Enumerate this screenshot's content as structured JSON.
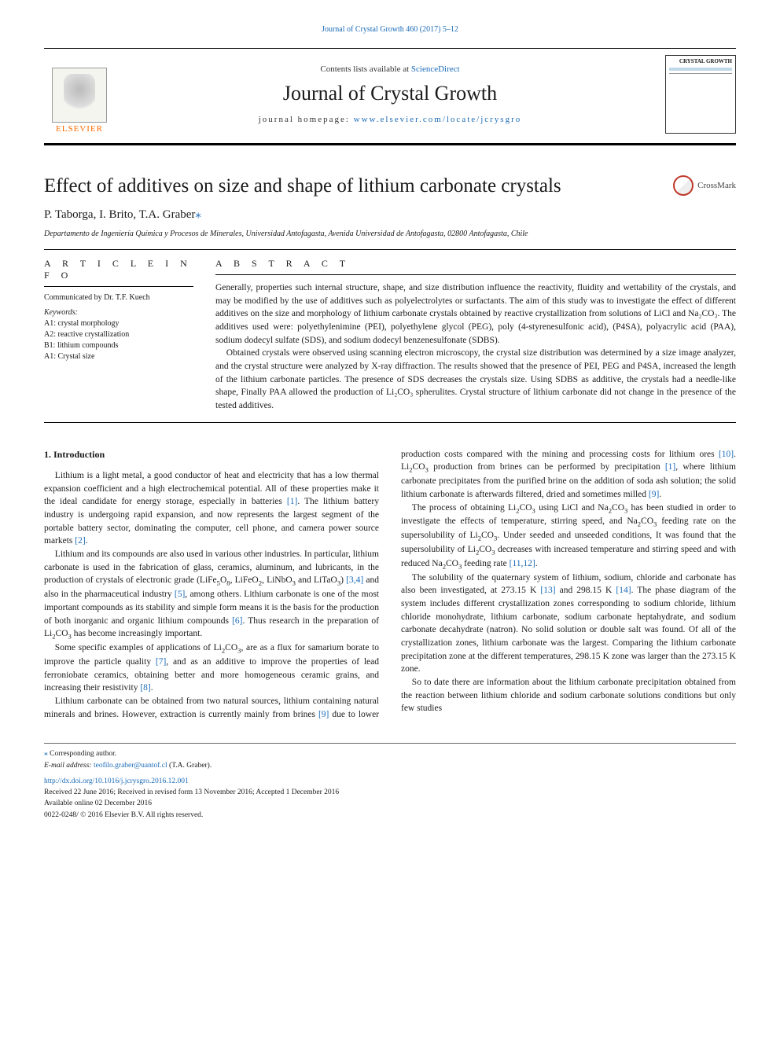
{
  "top_link": "Journal of Crystal Growth 460 (2017) 5–12",
  "header": {
    "contents_prefix": "Contents lists available at ",
    "contents_link": "ScienceDirect",
    "journal_name": "Journal of Crystal Growth",
    "homepage_prefix": "journal homepage: ",
    "homepage_url": "www.elsevier.com/locate/jcrysgro",
    "publisher": "ELSEVIER",
    "cover_title": "CRYSTAL GROWTH"
  },
  "article": {
    "title": "Effect of additives on size and shape of lithium carbonate crystals",
    "crossmark": "CrossMark",
    "authors": "P. Taborga, I. Brito, T.A. Graber",
    "affiliation": "Departamento de Ingeniería Química y Procesos de Minerales, Universidad Antofagasta, Avenida Universidad de Antofagasta, 02800 Antofagasta, Chile"
  },
  "info": {
    "section_label": "A R T I C L E  I N F O",
    "communicated": "Communicated by Dr. T.F. Kuech",
    "keywords_label": "Keywords:",
    "keywords": [
      "A1: crystal morphology",
      "A2: reactive crystallization",
      "B1: lithium compounds",
      "A1: Crystal size"
    ]
  },
  "abstract": {
    "section_label": "A B S T R A C T",
    "paragraphs": [
      "Generally, properties such internal structure, shape, and size distribution influence the reactivity, fluidity and wettability of the crystals, and may be modified by the use of additives such as polyelectrolytes or surfactants. The aim of this study was to investigate the effect of different additives on the size and morphology of lithium carbonate crystals obtained by reactive crystallization from solutions of LiCl and Na₂CO₃. The additives used were: polyethylenimine (PEI), polyethylene glycol (PEG), poly (4-styrenesulfonic acid), (P4SA), polyacrylic acid (PAA), sodium dodecyl sulfate (SDS), and sodium dodecyl benzenesulfonate (SDBS).",
      "Obtained crystals were observed using scanning electron microscopy, the crystal size distribution was determined by a size image analyzer, and the crystal structure were analyzed by X-ray diffraction. The results showed that the presence of PEI, PEG and P4SA, increased the length of the lithium carbonate particles. The presence of SDS decreases the crystals size. Using SDBS as additive, the crystals had a needle-like shape, Finally PAA allowed the production of Li₂CO₃ spherulites. Crystal structure of lithium carbonate did not change in the presence of the tested additives."
    ]
  },
  "body": {
    "heading": "1. Introduction",
    "paragraphs": [
      "Lithium is a light metal, a good conductor of heat and electricity that has a low thermal expansion coefficient and a high electrochemical potential. All of these properties make it the ideal candidate for energy storage, especially in batteries <span class=\"cite\">[1]</span>. The lithium battery industry is undergoing rapid expansion, and now represents the largest segment of the portable battery sector, dominating the computer, cell phone, and camera power source markets <span class=\"cite\">[2]</span>.",
      "Lithium and its compounds are also used in various other industries. In particular, lithium carbonate is used in the fabrication of glass, ceramics, aluminum, and lubricants, in the production of crystals of electronic grade (LiFe<span class=\"sub\">5</span>O<span class=\"sub\">8</span>, LiFeO<span class=\"sub\">2</span>, LiNbO<span class=\"sub\">3</span> and LiTaO<span class=\"sub\">3</span>) <span class=\"cite\">[3,4]</span> and also in the pharmaceutical industry <span class=\"cite\">[5]</span>, among others. Lithium carbonate is one of the most important compounds as its stability and simple form means it is the basis for the production of both inorganic and organic lithium compounds <span class=\"cite\">[6]</span>. Thus research in the preparation of Li<span class=\"sub\">2</span>CO<span class=\"sub\">3</span> has become increasingly important.",
      "Some specific examples of applications of Li<span class=\"sub\">2</span>CO<span class=\"sub\">3</span>, are as a flux for samarium borate to improve the particle quality <span class=\"cite\">[7]</span>, and as an additive to improve the properties of lead ferroniobate ceramics, obtaining better and more homogeneous ceramic grains, and increasing their resistivity <span class=\"cite\">[8]</span>.",
      "Lithium carbonate can be obtained from two natural sources, lithium containing natural minerals and brines. However, extraction is currently mainly from brines <span class=\"cite\">[9]</span> due to lower production costs compared with the mining and processing costs for lithium ores <span class=\"cite\">[10]</span>. Li<span class=\"sub\">2</span>CO<span class=\"sub\">3</span> production from brines can be performed by precipitation <span class=\"cite\">[1]</span>, where lithium carbonate precipitates from the purified brine on the addition of soda ash solution; the solid lithium carbonate is afterwards filtered, dried and sometimes milled <span class=\"cite\">[9]</span>.",
      "The process of obtaining Li<span class=\"sub\">2</span>CO<span class=\"sub\">3</span> using LiCl and Na<span class=\"sub\">2</span>CO<span class=\"sub\">3</span> has been studied in order to investigate the effects of temperature, stirring speed, and Na<span class=\"sub\">2</span>CO<span class=\"sub\">3</span> feeding rate on the supersolubility of Li<span class=\"sub\">2</span>CO<span class=\"sub\">3</span>. Under seeded and unseeded conditions, It was found that the supersolubility of Li<span class=\"sub\">2</span>CO<span class=\"sub\">3</span> decreases with increased temperature and stirring speed and with reduced Na<span class=\"sub\">2</span>CO<span class=\"sub\">3</span> feeding rate <span class=\"cite\">[11,12]</span>.",
      "The solubility of the quaternary system of lithium, sodium, chloride and carbonate has also been investigated, at 273.15 K <span class=\"cite\">[13]</span> and 298.15 K <span class=\"cite\">[14]</span>. The phase diagram of the system includes different crystallization zones corresponding to sodium chloride, lithium chloride monohydrate, lithium carbonate, sodium carbonate heptahydrate, and sodium carbonate decahydrate (natron). No solid solution or double salt was found. Of all of the crystallization zones, lithium carbonate was the largest. Comparing the lithium carbonate precipitation zone at the different temperatures, 298.15 K zone was larger than the 273.15 K zone.",
      "So to date there are information about the lithium carbonate precipitation obtained from the reaction between lithium chloride and sodium carbonate solutions conditions but only few studies"
    ]
  },
  "footnotes": {
    "corr": "Corresponding author.",
    "email_label": "E-mail address:",
    "email": "teofilo.graber@uantof.cl",
    "email_name": " (T.A. Graber).",
    "doi": "http://dx.doi.org/10.1016/j.jcrysgro.2016.12.001",
    "received": "Received 22 June 2016; Received in revised form 13 November 2016; Accepted 1 December 2016",
    "available": "Available online 02 December 2016",
    "copyright": "0022-0248/ © 2016 Elsevier B.V. All rights reserved."
  },
  "colors": {
    "link": "#1a6bb8",
    "publisher": "#ff6a00",
    "text": "#1a1a1a",
    "rule": "#000000"
  }
}
